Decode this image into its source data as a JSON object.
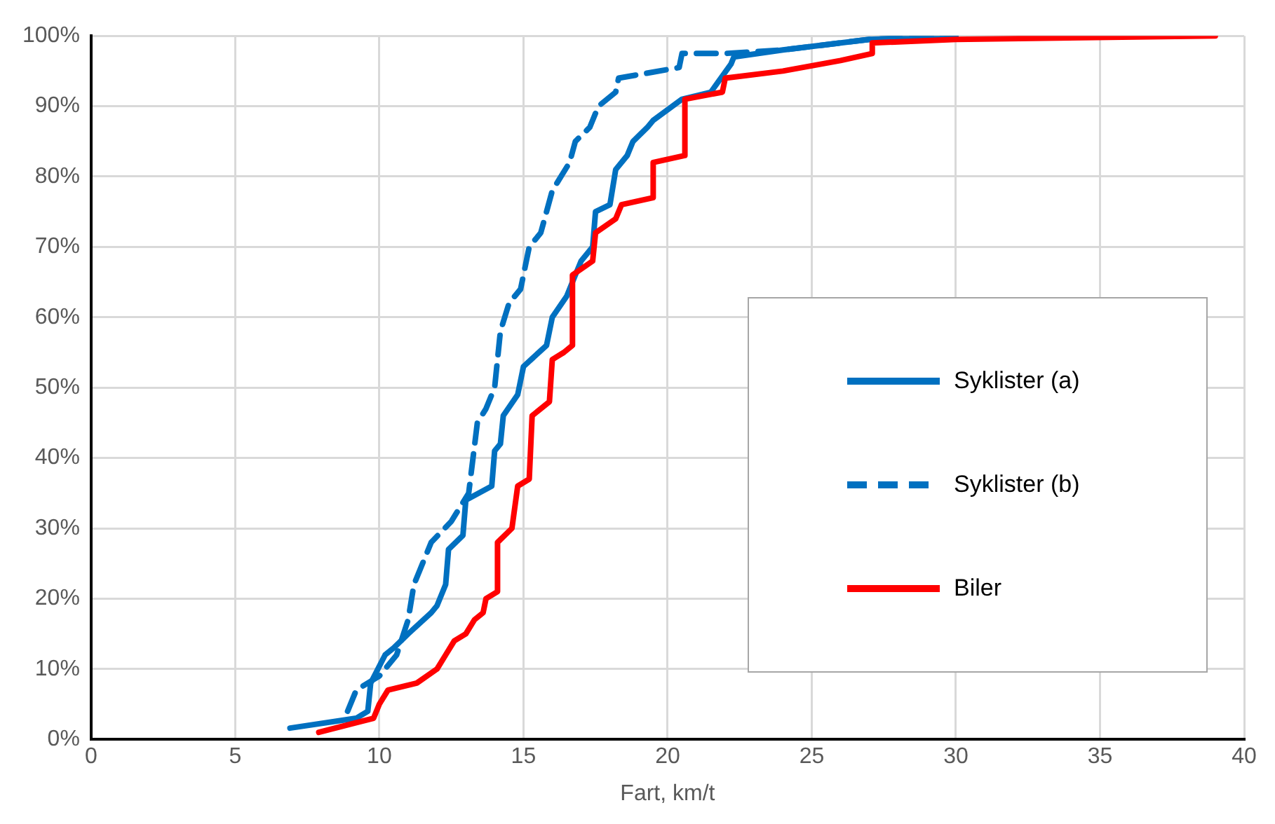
{
  "chart_data": {
    "type": "line",
    "xlabel": "Fart, km/t",
    "xlim": [
      0,
      40
    ],
    "xticks": [
      0,
      5,
      10,
      15,
      20,
      25,
      30,
      35,
      40
    ],
    "ylim": [
      0,
      100
    ],
    "yticks": [
      {
        "value": 0,
        "label": "0%"
      },
      {
        "value": 10,
        "label": "10%"
      },
      {
        "value": 20,
        "label": "20%"
      },
      {
        "value": 30,
        "label": "30%"
      },
      {
        "value": 40,
        "label": "40%"
      },
      {
        "value": 50,
        "label": "50%"
      },
      {
        "value": 60,
        "label": "60%"
      },
      {
        "value": 70,
        "label": "70%"
      },
      {
        "value": 80,
        "label": "80%"
      },
      {
        "value": 90,
        "label": "90%"
      },
      {
        "value": 100,
        "label": "100%"
      }
    ],
    "grid": true,
    "legend": "bottom right",
    "marker": "none",
    "series": [
      {
        "name": "Syklister (a)",
        "color": "#0070c0",
        "line_style": "solid",
        "x": [
          6.9,
          9.2,
          9.6,
          9.7,
          10.2,
          10.5,
          11,
          11.8,
          12,
          12.3,
          12.4,
          12.9,
          13,
          13.9,
          14,
          14.2,
          14.3,
          14.8,
          15,
          15.8,
          16,
          16.5,
          16.7,
          17,
          17.4,
          17.5,
          18,
          18.2,
          18.6,
          18.8,
          19.3,
          19.5,
          20.5,
          21.5,
          22.2,
          22.3,
          24,
          26,
          27,
          30
        ],
        "values": [
          1.6,
          3,
          4,
          8,
          12,
          13,
          15,
          18,
          19,
          22,
          27,
          29,
          34,
          36,
          41,
          42,
          46,
          49,
          53,
          56,
          60,
          63,
          65,
          68,
          70,
          75,
          76,
          81,
          83,
          85,
          87,
          88,
          91,
          92,
          96,
          97,
          98,
          99,
          99.5,
          100
        ]
      },
      {
        "name": "Syklister (b)",
        "color": "#0070c0",
        "line_style": "dashed",
        "x": [
          8.9,
          9.2,
          10,
          10.6,
          11,
          11.2,
          11.8,
          12.5,
          12.8,
          13.1,
          13.4,
          13.7,
          14,
          14.2,
          14.5,
          14.9,
          15.2,
          15.6,
          16,
          16.6,
          16.8,
          17.3,
          17.6,
          18.2,
          18.3,
          20.4,
          20.5,
          22,
          24,
          26,
          27,
          30
        ],
        "values": [
          4,
          7,
          9,
          12,
          17,
          22,
          28,
          31,
          33,
          35,
          45,
          47,
          50,
          58,
          62,
          64,
          70,
          72,
          78,
          82,
          85,
          87,
          90,
          92,
          94,
          95.5,
          97.5,
          97.5,
          98,
          99,
          99.5,
          100
        ]
      },
      {
        "name": "Biler",
        "color": "#ff0000",
        "line_style": "solid",
        "x": [
          7.9,
          9.8,
          10,
          10.3,
          11.3,
          12,
          12.3,
          12.6,
          13,
          13.3,
          13.6,
          13.7,
          14.1,
          14.1,
          14.6,
          14.8,
          15.2,
          15.3,
          15.9,
          16,
          16.4,
          16.7,
          16.7,
          17.4,
          17.5,
          18.2,
          18.4,
          19.5,
          19.5,
          20.6,
          20.6,
          21.9,
          22,
          24,
          26,
          27.1,
          27.1,
          30,
          39
        ],
        "values": [
          1,
          3,
          5,
          7,
          8,
          10,
          12,
          14,
          15,
          17,
          18,
          20,
          21,
          28,
          30,
          36,
          37,
          46,
          48,
          54,
          55,
          56,
          66,
          68,
          72,
          74,
          76,
          77,
          82,
          83,
          91,
          92,
          94,
          95,
          96.5,
          97.5,
          99,
          99.5,
          100
        ]
      }
    ]
  }
}
